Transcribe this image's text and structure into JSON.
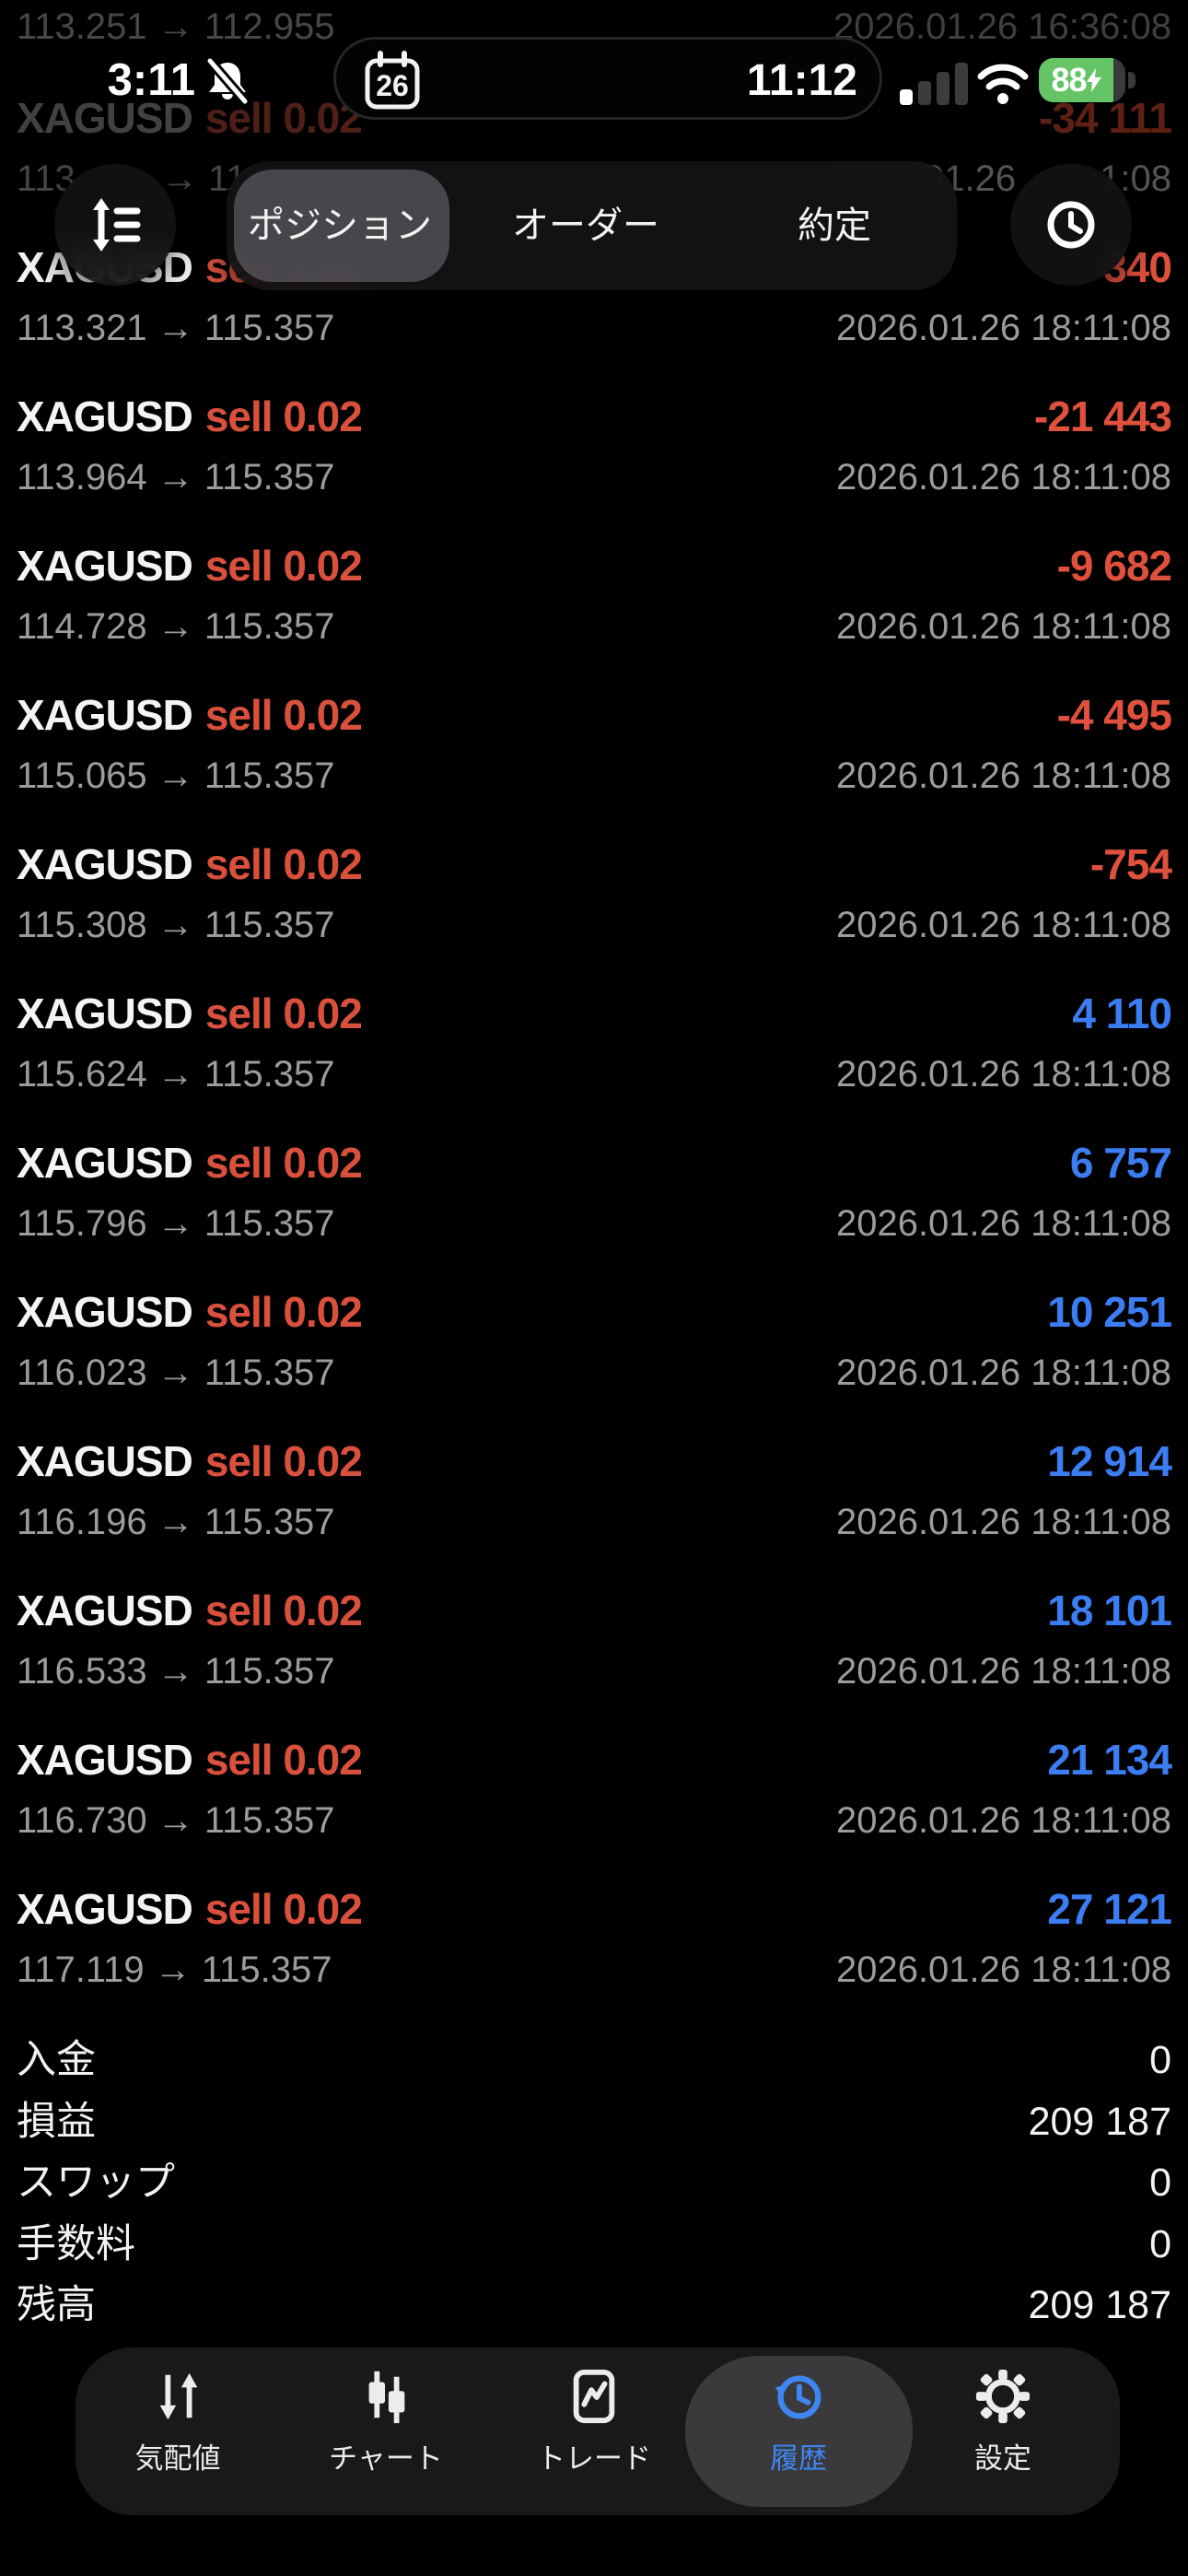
{
  "status_bar": {
    "time": "3:11",
    "island_day": "26",
    "island_time": "11:12",
    "battery_percent": "88"
  },
  "background_rows": {
    "top_prices": "113.251 → 112.955",
    "top_datetime": "2026.01.26 16:36:08",
    "symbol": "XAGUSD",
    "position": "sell 0.02",
    "profit": "-34 111",
    "price_fragment_left": "113",
    "price_fragment_mid": "→ 11",
    "datetime_fragment_left": "01.26",
    "datetime_fragment_right": "1:08",
    "blurred_date_fragment": "2026."
  },
  "header": {
    "tabs": [
      {
        "label": "ポジション",
        "selected": true
      },
      {
        "label": "オーダー",
        "selected": false
      },
      {
        "label": "約定",
        "selected": false
      }
    ]
  },
  "history_rows": [
    {
      "symbol": "XAGUSD",
      "position": "sell 0.02",
      "profit": "340",
      "direction": "loss",
      "prices": "113.321 → 115.357",
      "datetime": "2026.01.26 18:11:08"
    },
    {
      "symbol": "XAGUSD",
      "position": "sell 0.02",
      "profit": "-21 443",
      "direction": "loss",
      "prices": "113.964 → 115.357",
      "datetime": "2026.01.26 18:11:08"
    },
    {
      "symbol": "XAGUSD",
      "position": "sell 0.02",
      "profit": "-9 682",
      "direction": "loss",
      "prices": "114.728 → 115.357",
      "datetime": "2026.01.26 18:11:08"
    },
    {
      "symbol": "XAGUSD",
      "position": "sell 0.02",
      "profit": "-4 495",
      "direction": "loss",
      "prices": "115.065 → 115.357",
      "datetime": "2026.01.26 18:11:08"
    },
    {
      "symbol": "XAGUSD",
      "position": "sell 0.02",
      "profit": "-754",
      "direction": "loss",
      "prices": "115.308 → 115.357",
      "datetime": "2026.01.26 18:11:08"
    },
    {
      "symbol": "XAGUSD",
      "position": "sell 0.02",
      "profit": "4 110",
      "direction": "profit",
      "prices": "115.624 → 115.357",
      "datetime": "2026.01.26 18:11:08"
    },
    {
      "symbol": "XAGUSD",
      "position": "sell 0.02",
      "profit": "6 757",
      "direction": "profit",
      "prices": "115.796 → 115.357",
      "datetime": "2026.01.26 18:11:08"
    },
    {
      "symbol": "XAGUSD",
      "position": "sell 0.02",
      "profit": "10 251",
      "direction": "profit",
      "prices": "116.023 → 115.357",
      "datetime": "2026.01.26 18:11:08"
    },
    {
      "symbol": "XAGUSD",
      "position": "sell 0.02",
      "profit": "12 914",
      "direction": "profit",
      "prices": "116.196 → 115.357",
      "datetime": "2026.01.26 18:11:08"
    },
    {
      "symbol": "XAGUSD",
      "position": "sell 0.02",
      "profit": "18 101",
      "direction": "profit",
      "prices": "116.533 → 115.357",
      "datetime": "2026.01.26 18:11:08"
    },
    {
      "symbol": "XAGUSD",
      "position": "sell 0.02",
      "profit": "21 134",
      "direction": "profit",
      "prices": "116.730 → 115.357",
      "datetime": "2026.01.26 18:11:08"
    },
    {
      "symbol": "XAGUSD",
      "position": "sell 0.02",
      "profit": "27 121",
      "direction": "profit",
      "prices": "117.119 → 115.357",
      "datetime": "2026.01.26 18:11:08"
    }
  ],
  "summary": [
    {
      "label": "入金",
      "value": "0"
    },
    {
      "label": "損益",
      "value": "209 187"
    },
    {
      "label": "スワップ",
      "value": "0"
    },
    {
      "label": "手数料",
      "value": "0"
    },
    {
      "label": "残高",
      "value": "209 187"
    }
  ],
  "nav": [
    {
      "label": "気配値",
      "icon": "quotes-icon",
      "selected": false
    },
    {
      "label": "チャート",
      "icon": "chart-icon",
      "selected": false
    },
    {
      "label": "トレード",
      "icon": "trade-icon",
      "selected": false
    },
    {
      "label": "履歴",
      "icon": "history-icon",
      "selected": true
    },
    {
      "label": "設定",
      "icon": "gear-icon",
      "selected": false
    }
  ],
  "colors": {
    "loss_red": "#e0513d",
    "profit_blue": "#3b7df2",
    "nav_active_blue": "#3f86f4",
    "battery_green": "#65c466"
  }
}
